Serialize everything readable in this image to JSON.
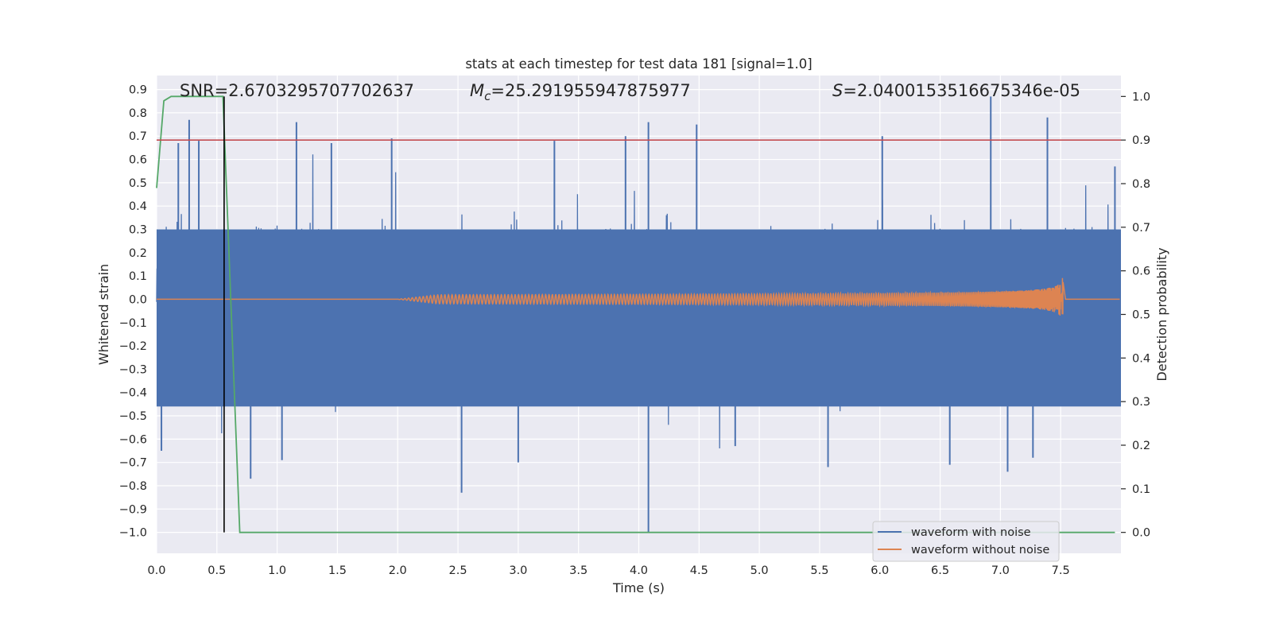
{
  "chart_data": {
    "type": "line",
    "title": "stats at each timestep for test data 181 [signal=1.0]",
    "xlabel": "Time (s)",
    "ylabel": "Whitened strain",
    "y2label": "Detection probability",
    "xlim": [
      0.0,
      8.0
    ],
    "ylim": [
      -1.09,
      0.96
    ],
    "y2lim": [
      -0.048,
      1.048
    ],
    "xticks": [
      "0.0",
      "0.5",
      "1.0",
      "1.5",
      "2.0",
      "2.5",
      "3.0",
      "3.5",
      "4.0",
      "4.5",
      "5.0",
      "5.5",
      "6.0",
      "6.5",
      "7.0",
      "7.5"
    ],
    "yticks": [
      "0.9",
      "0.8",
      "0.7",
      "0.6",
      "0.5",
      "0.4",
      "0.3",
      "0.2",
      "0.1",
      "0.0",
      "−0.1",
      "−0.2",
      "−0.3",
      "−0.4",
      "−0.5",
      "−0.6",
      "−0.7",
      "−0.8",
      "−0.9",
      "−1.0"
    ],
    "y2ticks": [
      "1.0",
      "0.9",
      "0.8",
      "0.7",
      "0.6",
      "0.5",
      "0.4",
      "0.3",
      "0.2",
      "0.1",
      "0.0"
    ],
    "grid": true,
    "legend_position": "lower-right",
    "annotations": {
      "snr": "SNR=2.6703295707702637",
      "mc_symbol": "M",
      "mc_sub": "c",
      "mc_value": "=25.291955947875977",
      "s_symbol": "S",
      "s_value": "=2.0400153516675346e-05"
    },
    "series": [
      {
        "name": "waveform with noise",
        "color": "#4c72b0",
        "axis": "left",
        "description_kind": "noise",
        "band_low": -0.46,
        "band_high": 0.3,
        "spikes": [
          {
            "x": 0.18,
            "y": 0.67
          },
          {
            "x": 0.27,
            "y": 0.77
          },
          {
            "x": 0.35,
            "y": 0.68
          },
          {
            "x": 1.16,
            "y": 0.76
          },
          {
            "x": 1.45,
            "y": 0.67
          },
          {
            "x": 1.95,
            "y": 0.69
          },
          {
            "x": 3.3,
            "y": 0.68
          },
          {
            "x": 3.89,
            "y": 0.7
          },
          {
            "x": 4.08,
            "y": 0.76
          },
          {
            "x": 4.48,
            "y": 0.75
          },
          {
            "x": 6.02,
            "y": 0.7
          },
          {
            "x": 6.92,
            "y": 0.87
          },
          {
            "x": 7.39,
            "y": 0.78
          },
          {
            "x": 7.95,
            "y": 0.57
          },
          {
            "x": 0.04,
            "y": -0.65
          },
          {
            "x": 0.78,
            "y": -0.77
          },
          {
            "x": 1.04,
            "y": -0.69
          },
          {
            "x": 2.53,
            "y": -0.83
          },
          {
            "x": 3.0,
            "y": -0.7
          },
          {
            "x": 4.08,
            "y": -1.0
          },
          {
            "x": 4.8,
            "y": -0.63
          },
          {
            "x": 5.57,
            "y": -0.72
          },
          {
            "x": 6.58,
            "y": -0.71
          },
          {
            "x": 7.06,
            "y": -0.74
          },
          {
            "x": 7.27,
            "y": -0.68
          }
        ]
      },
      {
        "name": "waveform without noise",
        "color": "#dd8452",
        "axis": "left",
        "chirp_start": 2.0,
        "chirp_end": 7.52,
        "final_amplitude": 0.11
      },
      {
        "name": "detection probability",
        "color": "#55a868",
        "axis": "right",
        "x": [
          0.0,
          0.06,
          0.12,
          0.16,
          0.55,
          0.69,
          7.95
        ],
        "values": [
          0.79,
          0.99,
          1.0,
          1.0,
          1.0,
          0.0,
          0.0
        ]
      }
    ],
    "threshold": {
      "value": 0.9,
      "color": "#c44e52"
    },
    "vertical_line": {
      "x": 0.56,
      "color": "#000000"
    }
  }
}
